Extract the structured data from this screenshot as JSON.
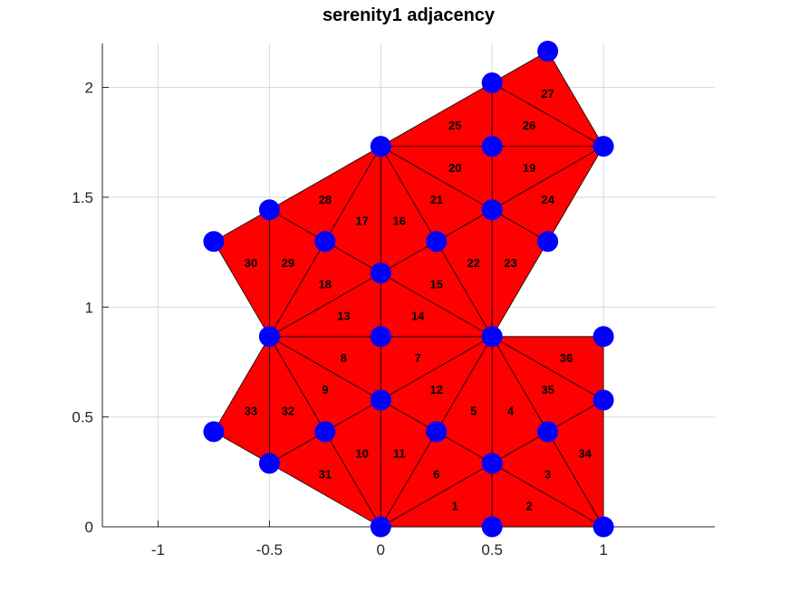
{
  "title": "serenity1 adjacency",
  "colors": {
    "fill": "#ff0000",
    "node": "#0000ff",
    "edge": "#000000"
  },
  "chart_data": {
    "type": "mesh",
    "title": "serenity1 adjacency",
    "xlim": [
      -1.25,
      1.5
    ],
    "ylim": [
      0,
      2.2
    ],
    "x_ticks": [
      -1,
      -0.5,
      0,
      0.5,
      1
    ],
    "x_tick_labels": [
      "-1",
      "-0.5",
      "0",
      "0.5",
      "1"
    ],
    "y_ticks": [
      0,
      0.5,
      1,
      1.5,
      2
    ],
    "y_tick_labels": [
      "0",
      "0.5",
      "1",
      "1.5",
      "2"
    ],
    "grid": true,
    "nodes": [
      [
        0,
        0
      ],
      [
        0.5,
        0
      ],
      [
        1,
        0
      ],
      [
        0.5,
        0.289
      ],
      [
        -0.5,
        0.289
      ],
      [
        -0.25,
        0.433
      ],
      [
        0.25,
        0.433
      ],
      [
        0.75,
        0.433
      ],
      [
        -0.75,
        0.433
      ],
      [
        0,
        0.577
      ],
      [
        1,
        0.577
      ],
      [
        -0.5,
        0.866
      ],
      [
        0,
        0.866
      ],
      [
        0.5,
        0.866
      ],
      [
        1,
        0.866
      ],
      [
        0,
        1.155
      ],
      [
        -0.75,
        1.299
      ],
      [
        -0.25,
        1.299
      ],
      [
        0.25,
        1.299
      ],
      [
        0.75,
        1.299
      ],
      [
        -0.5,
        1.443
      ],
      [
        0.5,
        1.443
      ],
      [
        0,
        1.732
      ],
      [
        0.5,
        1.732
      ],
      [
        1,
        1.732
      ],
      [
        0.5,
        2.021
      ],
      [
        0.75,
        2.165
      ]
    ],
    "triangles": [
      {
        "label": "1",
        "v": [
          0,
          1,
          3
        ]
      },
      {
        "label": "2",
        "v": [
          1,
          2,
          3
        ]
      },
      {
        "label": "3",
        "v": [
          3,
          2,
          7
        ]
      },
      {
        "label": "4",
        "v": [
          3,
          7,
          13
        ]
      },
      {
        "label": "5",
        "v": [
          3,
          13,
          6
        ]
      },
      {
        "label": "6",
        "v": [
          0,
          3,
          6
        ]
      },
      {
        "label": "7",
        "v": [
          12,
          13,
          9
        ]
      },
      {
        "label": "8",
        "v": [
          11,
          12,
          9
        ]
      },
      {
        "label": "9",
        "v": [
          11,
          9,
          5
        ]
      },
      {
        "label": "10",
        "v": [
          5,
          9,
          0
        ]
      },
      {
        "label": "11",
        "v": [
          9,
          6,
          0
        ]
      },
      {
        "label": "12",
        "v": [
          9,
          13,
          6
        ]
      },
      {
        "label": "13",
        "v": [
          11,
          12,
          15
        ]
      },
      {
        "label": "14",
        "v": [
          12,
          13,
          15
        ]
      },
      {
        "label": "15",
        "v": [
          13,
          15,
          18
        ]
      },
      {
        "label": "16",
        "v": [
          15,
          18,
          22
        ]
      },
      {
        "label": "17",
        "v": [
          15,
          22,
          17
        ]
      },
      {
        "label": "18",
        "v": [
          11,
          15,
          17
        ]
      },
      {
        "label": "19",
        "v": [
          21,
          23,
          24
        ]
      },
      {
        "label": "20",
        "v": [
          22,
          23,
          21
        ]
      },
      {
        "label": "21",
        "v": [
          22,
          21,
          18
        ]
      },
      {
        "label": "22",
        "v": [
          18,
          21,
          13
        ]
      },
      {
        "label": "23",
        "v": [
          13,
          21,
          19
        ]
      },
      {
        "label": "24",
        "v": [
          21,
          24,
          19
        ]
      },
      {
        "label": "25",
        "v": [
          22,
          25,
          23
        ]
      },
      {
        "label": "26",
        "v": [
          25,
          24,
          23
        ]
      },
      {
        "label": "27",
        "v": [
          25,
          26,
          24
        ]
      },
      {
        "label": "28",
        "v": [
          20,
          22,
          17
        ]
      },
      {
        "label": "29",
        "v": [
          20,
          17,
          11
        ]
      },
      {
        "label": "30",
        "v": [
          16,
          20,
          11
        ]
      },
      {
        "label": "31",
        "v": [
          4,
          5,
          0
        ]
      },
      {
        "label": "32",
        "v": [
          11,
          5,
          4
        ]
      },
      {
        "label": "33",
        "v": [
          8,
          11,
          4
        ]
      },
      {
        "label": "34",
        "v": [
          7,
          2,
          10
        ]
      },
      {
        "label": "35",
        "v": [
          7,
          10,
          13
        ]
      },
      {
        "label": "36",
        "v": [
          13,
          10,
          14
        ]
      }
    ]
  }
}
